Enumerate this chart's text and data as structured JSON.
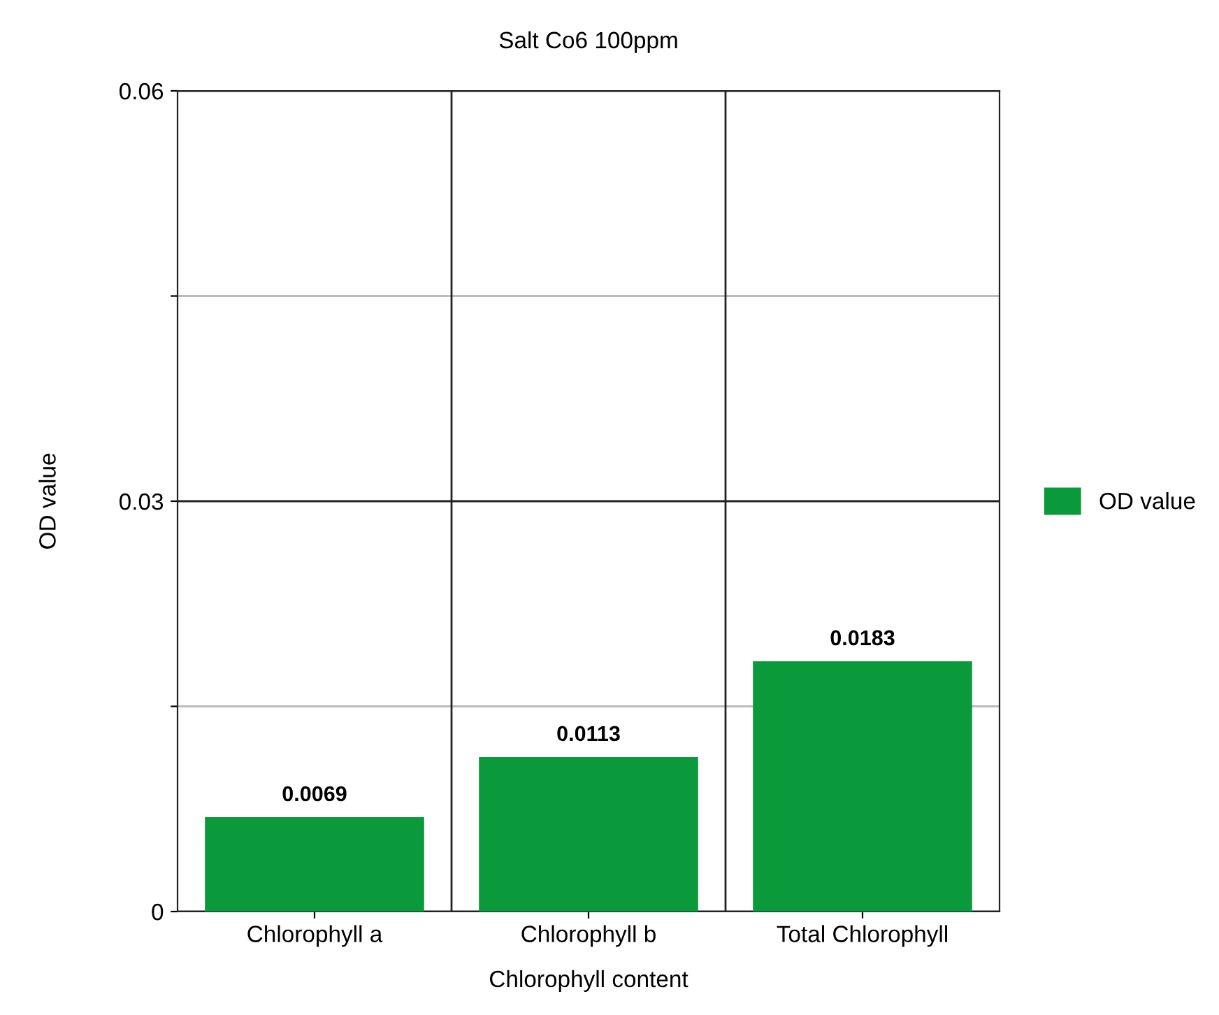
{
  "chart_data": {
    "type": "bar",
    "title": "Salt Co6 100ppm",
    "xlabel": "Chlorophyll content",
    "ylabel": "OD value",
    "categories": [
      "Chlorophyll a",
      "Chlorophyll b",
      "Total Chlorophyll"
    ],
    "series": [
      {
        "name": "OD value",
        "color": "#0a9a3c",
        "values": [
          0.0069,
          0.0113,
          0.0183
        ]
      }
    ],
    "ylim": [
      0,
      0.06
    ],
    "yticks": [
      0,
      {
        "value": 0.015,
        "label": null
      },
      {
        "value": 0.03,
        "label": "0.03"
      },
      {
        "value": 0.045,
        "label": null
      },
      {
        "value": 0.06,
        "label": "0.06"
      }
    ],
    "grid": true,
    "legend": "right",
    "data_labels": true
  }
}
